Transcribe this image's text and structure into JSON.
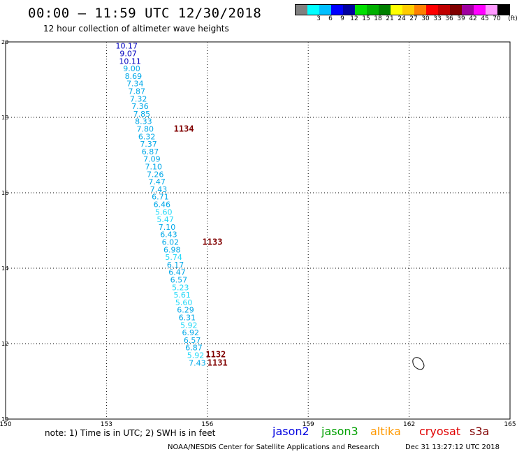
{
  "header": {
    "title": "00:00 – 11:59 UTC 12/30/2018",
    "subtitle": "12 hour collection of altimeter wave heights"
  },
  "legend": {
    "unit": "(ft)",
    "bins": [
      {
        "label": "",
        "color": "#808080"
      },
      {
        "label": "3",
        "color": "#00ffff"
      },
      {
        "label": "6",
        "color": "#00bfff"
      },
      {
        "label": "9",
        "color": "#0000ff"
      },
      {
        "label": "12",
        "color": "#0000a0"
      },
      {
        "label": "15",
        "color": "#00e000"
      },
      {
        "label": "18",
        "color": "#00b000"
      },
      {
        "label": "21",
        "color": "#008000"
      },
      {
        "label": "24",
        "color": "#ffff00"
      },
      {
        "label": "27",
        "color": "#ffcc00"
      },
      {
        "label": "30",
        "color": "#ff8000"
      },
      {
        "label": "33",
        "color": "#ff0000"
      },
      {
        "label": "36",
        "color": "#c00000"
      },
      {
        "label": "39",
        "color": "#800000"
      },
      {
        "label": "42",
        "color": "#a000a0"
      },
      {
        "label": "45",
        "color": "#ff00ff"
      },
      {
        "label": "70",
        "color": "#ff99ff"
      },
      {
        "label": "",
        "color": "#000000"
      }
    ]
  },
  "chart_data": {
    "type": "scatter",
    "lon_ticks": [
      "150",
      "153",
      "156",
      "159",
      "162",
      "165"
    ],
    "lat_ticks": [
      "10",
      "12",
      "14",
      "16",
      "18",
      "20"
    ],
    "xlim": [
      150,
      165
    ],
    "ylim": [
      10,
      20
    ],
    "wave_heights": [
      {
        "lon": 153.6,
        "lat": 19.82,
        "value": "10.17",
        "color": "#0000c0"
      },
      {
        "lon": 153.65,
        "lat": 19.62,
        "value": "9.07",
        "color": "#0000c0"
      },
      {
        "lon": 153.7,
        "lat": 19.42,
        "value": "10.11",
        "color": "#0000c0"
      },
      {
        "lon": 153.75,
        "lat": 19.22,
        "value": "9.00",
        "color": "#00a8e8"
      },
      {
        "lon": 153.8,
        "lat": 19.02,
        "value": "8.69",
        "color": "#00a8e8"
      },
      {
        "lon": 153.85,
        "lat": 18.82,
        "value": "7.34",
        "color": "#00a8e8"
      },
      {
        "lon": 153.9,
        "lat": 18.62,
        "value": "7.87",
        "color": "#00a8e8"
      },
      {
        "lon": 153.95,
        "lat": 18.42,
        "value": "7.32",
        "color": "#00a8e8"
      },
      {
        "lon": 154.0,
        "lat": 18.22,
        "value": "7.36",
        "color": "#00a8e8"
      },
      {
        "lon": 154.05,
        "lat": 18.02,
        "value": "7.85",
        "color": "#00a8e8"
      },
      {
        "lon": 154.1,
        "lat": 17.82,
        "value": "8.33",
        "color": "#00a8e8"
      },
      {
        "lon": 154.15,
        "lat": 17.62,
        "value": "7.80",
        "color": "#00a8e8"
      },
      {
        "lon": 154.2,
        "lat": 17.42,
        "value": "6.32",
        "color": "#00a8e8"
      },
      {
        "lon": 154.25,
        "lat": 17.22,
        "value": "7.37",
        "color": "#00a8e8"
      },
      {
        "lon": 154.3,
        "lat": 17.02,
        "value": "6.87",
        "color": "#00a8e8"
      },
      {
        "lon": 154.35,
        "lat": 16.82,
        "value": "7.09",
        "color": "#00a8e8"
      },
      {
        "lon": 154.4,
        "lat": 16.62,
        "value": "7.10",
        "color": "#00a8e8"
      },
      {
        "lon": 154.45,
        "lat": 16.42,
        "value": "7.26",
        "color": "#00a8e8"
      },
      {
        "lon": 154.5,
        "lat": 16.22,
        "value": "7.47",
        "color": "#00a8e8"
      },
      {
        "lon": 154.55,
        "lat": 16.02,
        "value": "7.43",
        "color": "#00a8e8"
      },
      {
        "lon": 154.6,
        "lat": 15.82,
        "value": "6.71",
        "color": "#00a8e8"
      },
      {
        "lon": 154.65,
        "lat": 15.62,
        "value": "6.46",
        "color": "#00a8e8"
      },
      {
        "lon": 154.7,
        "lat": 15.42,
        "value": "5.60",
        "color": "#20d8f8"
      },
      {
        "lon": 154.75,
        "lat": 15.22,
        "value": "5.47",
        "color": "#20d8f8"
      },
      {
        "lon": 154.8,
        "lat": 15.02,
        "value": "7.10",
        "color": "#00a8e8"
      },
      {
        "lon": 154.85,
        "lat": 14.82,
        "value": "6.43",
        "color": "#00a8e8"
      },
      {
        "lon": 154.9,
        "lat": 14.62,
        "value": "6.02",
        "color": "#00a8e8"
      },
      {
        "lon": 154.95,
        "lat": 14.42,
        "value": "6.98",
        "color": "#00a8e8"
      },
      {
        "lon": 155.0,
        "lat": 14.22,
        "value": "5.74",
        "color": "#20d8f8"
      },
      {
        "lon": 155.05,
        "lat": 14.02,
        "value": "6.17",
        "color": "#00a8e8"
      },
      {
        "lon": 155.1,
        "lat": 13.82,
        "value": "6.47",
        "color": "#00a8e8"
      },
      {
        "lon": 155.15,
        "lat": 13.62,
        "value": "6.57",
        "color": "#00a8e8"
      },
      {
        "lon": 155.2,
        "lat": 13.42,
        "value": "5.23",
        "color": "#20d8f8"
      },
      {
        "lon": 155.25,
        "lat": 13.22,
        "value": "5.61",
        "color": "#20d8f8"
      },
      {
        "lon": 155.3,
        "lat": 13.02,
        "value": "5.60",
        "color": "#20d8f8"
      },
      {
        "lon": 155.35,
        "lat": 12.82,
        "value": "6.29",
        "color": "#00a8e8"
      },
      {
        "lon": 155.4,
        "lat": 12.62,
        "value": "6.31",
        "color": "#00a8e8"
      },
      {
        "lon": 155.45,
        "lat": 12.42,
        "value": "5.92",
        "color": "#20d8f8"
      },
      {
        "lon": 155.5,
        "lat": 12.22,
        "value": "6.92",
        "color": "#00a8e8"
      },
      {
        "lon": 155.55,
        "lat": 12.02,
        "value": "6.57",
        "color": "#00a8e8"
      },
      {
        "lon": 155.6,
        "lat": 11.82,
        "value": "6.87",
        "color": "#00a8e8"
      },
      {
        "lon": 155.65,
        "lat": 11.62,
        "value": "5.92",
        "color": "#20d8f8"
      },
      {
        "lon": 155.7,
        "lat": 11.42,
        "value": "7.43",
        "color": "#00a8e8"
      }
    ],
    "pass_labels": [
      {
        "lon": 155.3,
        "lat": 17.62,
        "value": "1134"
      },
      {
        "lon": 156.15,
        "lat": 14.62,
        "value": "1133"
      },
      {
        "lon": 156.25,
        "lat": 11.64,
        "value": "1132"
      },
      {
        "lon": 156.3,
        "lat": 11.42,
        "value": "1131"
      }
    ]
  },
  "footer": {
    "note": "note: 1) Time is in UTC; 2) SWH is in feet",
    "satellites": [
      {
        "name": "jason2",
        "color": "#0000e0"
      },
      {
        "name": "jason3",
        "color": "#00a000"
      },
      {
        "name": "altika",
        "color": "#ff9900"
      },
      {
        "name": "cryosat",
        "color": "#e00000"
      },
      {
        "name": "s3a",
        "color": "#800000"
      }
    ],
    "credit": "NOAA/NESDIS Center for Satellite Applications and Research",
    "timestamp": "Dec 31 13:27:12 UTC 2018"
  }
}
